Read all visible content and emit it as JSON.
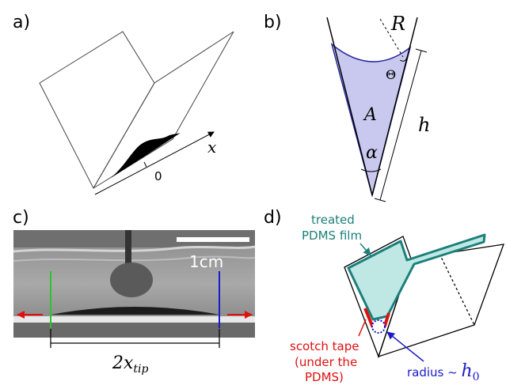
{
  "panels": {
    "a": {
      "label": "a)",
      "axis_label": "x",
      "origin_label": "0"
    },
    "b": {
      "label": "b)",
      "radius_label": "R",
      "contact_angle_label": "Θ",
      "area_label": "A",
      "height_label": "h",
      "angle_label": "α"
    },
    "c": {
      "label": "c)",
      "scale_label": "1cm",
      "span_label": "2x",
      "span_subscript": "tip"
    },
    "d": {
      "label": "d)",
      "film_label_line1": "treated",
      "film_label_line2": "PDMS film",
      "tape_label_line1": "scotch tape",
      "tape_label_line2": "(under the",
      "tape_label_line3": "PDMS)",
      "radius_label": "radius ~ ",
      "radius_symbol": "h",
      "radius_subscript": "0"
    }
  },
  "colors": {
    "liquid_fill": "#c9c9ef",
    "liquid_stroke": "#2b2b9c",
    "film_fill": "#bfe8e4",
    "film_stroke": "#1c7f7a",
    "tape": "#e01010",
    "radius_marker": "#1a1acc",
    "left_marker": "#2cc52c",
    "right_marker": "#1a1acc",
    "arrow_red": "#e01010"
  }
}
